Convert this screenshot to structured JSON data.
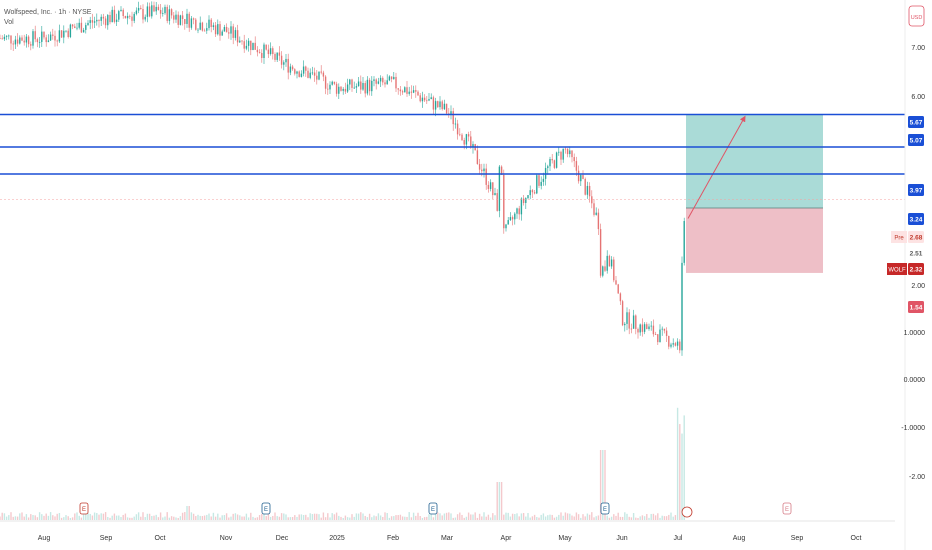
{
  "header": {
    "symbol_line": "Wolfspeed, Inc. · 1h · NYSE",
    "vol_label": "Vol"
  },
  "currency_badge": "USD",
  "colors": {
    "bg": "#ffffff",
    "up": "#26a69a",
    "down": "#e57373",
    "level_line": "#1a4fd6",
    "profit_zone": "#8ecfc9",
    "loss_zone": "#e8aab4",
    "arrow": "#e05566"
  },
  "chart_data": {
    "type": "candlestick",
    "x_axis": {
      "labels": [
        "Aug",
        "Sep",
        "Oct",
        "Nov",
        "Dec",
        "2025",
        "Feb",
        "Mar",
        "Apr",
        "May",
        "Jun",
        "Jul",
        "Aug",
        "Sep",
        "Oct"
      ]
    },
    "y_axis": {
      "scale": "log",
      "labels": [
        "7.00",
        "6.00",
        "2.00",
        "1.0000",
        "0.0000",
        "-1.0000",
        "-2.00"
      ]
    },
    "price_tags": [
      {
        "value": "5.67",
        "kind": "level"
      },
      {
        "value": "5.07",
        "kind": "level"
      },
      {
        "value": "3.97",
        "kind": "level"
      },
      {
        "value": "3.24",
        "kind": "level"
      },
      {
        "value": "2.68",
        "kind": "pre",
        "prefix": "Pre"
      },
      {
        "value": "2.51",
        "kind": "plain"
      },
      {
        "value": "2.32",
        "kind": "last",
        "prefix": "WOLF"
      },
      {
        "value": "1.54",
        "kind": "stop"
      }
    ],
    "horizontal_levels": [
      5.07,
      3.97,
      3.24
    ],
    "position": {
      "entry": 2.51,
      "target": 5.07,
      "stop": 1.54,
      "start": "Jul",
      "end": "Sep"
    },
    "event_markers": [
      {
        "label": "E",
        "at": "Aug"
      },
      {
        "label": "E",
        "at": "Nov"
      },
      {
        "label": "E",
        "at": "Feb"
      },
      {
        "label": "E",
        "at": "May"
      },
      {
        "label": "E",
        "at": "Aug"
      }
    ],
    "price_path": [
      {
        "t": "Aug",
        "price": 9.0
      },
      {
        "t": "Sep",
        "price": 10.5
      },
      {
        "t": "Oct",
        "price": 11.0
      },
      {
        "t": "Nov",
        "price": 9.5
      },
      {
        "t": "Dec",
        "price": 7.5
      },
      {
        "t": "2025",
        "price": 6.2
      },
      {
        "t": "Feb",
        "price": 6.4
      },
      {
        "t": "Mar",
        "price": 5.2
      },
      {
        "t": "Apr",
        "price": 2.1
      },
      {
        "t": "May",
        "price": 3.9
      },
      {
        "t": "Jun",
        "price": 1.1
      },
      {
        "t": "Jul",
        "price": 0.9
      }
    ]
  }
}
